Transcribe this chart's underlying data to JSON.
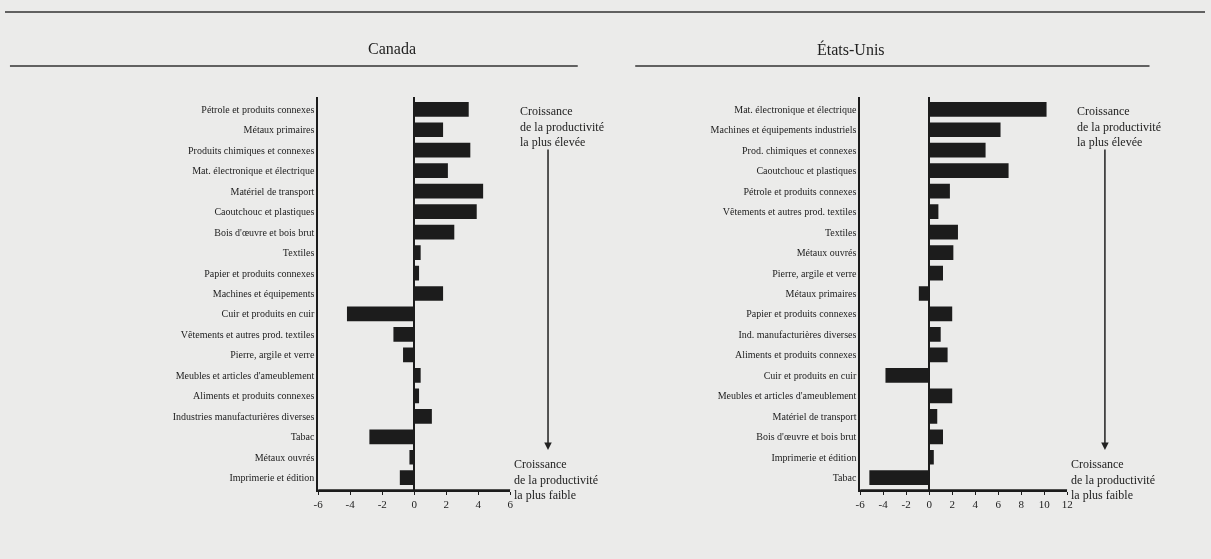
{
  "chart_data": [
    {
      "type": "bar",
      "orientation": "horizontal",
      "title": "Canada",
      "color": "#1c1c1c",
      "categories": [
        "Pétrole et produits connexes",
        "Métaux primaires",
        "Produits chimiques et connexes",
        "Mat. électronique et électrique",
        "Matériel de transport",
        "Caoutchouc et plastiques",
        "Bois d'œuvre et bois brut",
        "Textiles",
        "Papier et produits connexes",
        "Machines et équipements",
        "Cuir et produits en cuir",
        "Vêtements et autres prod. textiles",
        "Pierre, argile et verre",
        "Meubles et articles d'ameublement",
        "Aliments et produits connexes",
        "Industries manufacturières diverses",
        "Tabac",
        "Métaux ouvrés",
        "Imprimerie et édition"
      ],
      "values": [
        3.4,
        1.8,
        3.5,
        2.1,
        4.3,
        3.9,
        2.5,
        0.4,
        0.3,
        1.8,
        -4.2,
        -1.3,
        -0.7,
        0.4,
        0.3,
        1.1,
        -2.8,
        -0.3,
        -0.9
      ],
      "xlim": [
        -6,
        6
      ],
      "xticks": [
        -6,
        -4,
        -2,
        0,
        2,
        4,
        6
      ],
      "annotations": [
        "Croissance\nde la productivité\nla plus élevée",
        "Croissance\nde la productivité\nla plus faible"
      ]
    },
    {
      "type": "bar",
      "orientation": "horizontal",
      "title": "États-Unis",
      "color": "#1c1c1c",
      "categories": [
        "Mat. électronique et électrique",
        "Machines et équipements industriels",
        "Prod. chimiques et connexes",
        "Caoutchouc et plastiques",
        "Pétrole et produits connexes",
        "Vêtements et autres prod. textiles",
        "Textiles",
        "Métaux ouvrés",
        "Pierre, argile et verre",
        "Métaux primaires",
        "Papier et produits connexes",
        "Ind. manufacturières diverses",
        "Aliments et produits connexes",
        "Cuir et produits en cuir",
        "Meubles et articles d'ameublement",
        "Matériel de transport",
        "Bois d'œuvre et bois brut",
        "Imprimerie et édition",
        "Tabac"
      ],
      "values": [
        10.2,
        6.2,
        4.9,
        6.9,
        1.8,
        0.8,
        2.5,
        2.1,
        1.2,
        -0.9,
        2.0,
        1.0,
        1.6,
        -3.8,
        2.0,
        0.7,
        1.2,
        0.4,
        -5.2
      ],
      "xlim": [
        -6,
        12
      ],
      "xticks": [
        -6,
        -4,
        -2,
        0,
        2,
        4,
        6,
        8,
        10,
        12
      ],
      "annotations": [
        "Croissance\nde la productivité\nla plus élevée",
        "Croissance\nde la productivité\nla plus faible"
      ]
    }
  ]
}
